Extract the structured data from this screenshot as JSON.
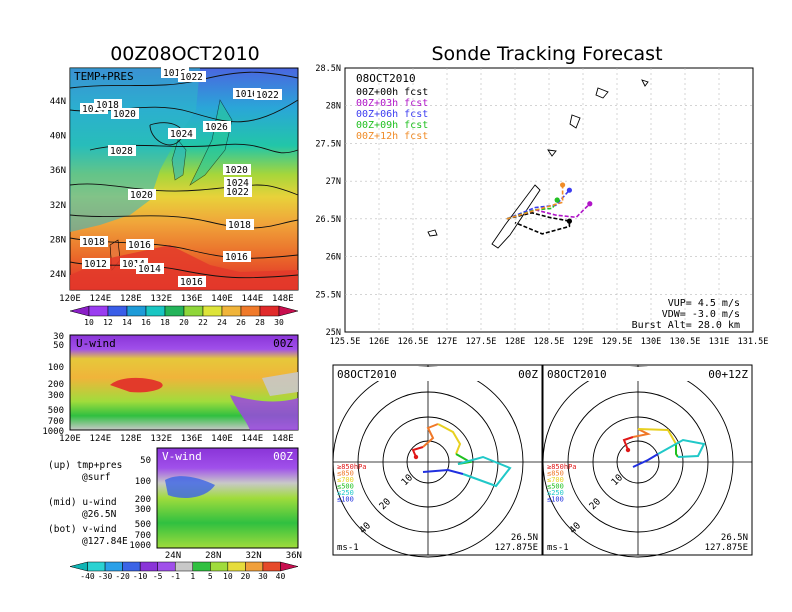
{
  "left_panel": {
    "title": "00Z08OCT2010",
    "map": {
      "label": "TEMP+PRES",
      "x_ticks": [
        "120E",
        "124E",
        "128E",
        "132E",
        "136E",
        "140E",
        "144E",
        "148E"
      ],
      "y_ticks": [
        "44N",
        "40N",
        "36N",
        "32N",
        "28N",
        "24N"
      ],
      "isobar_labels": [
        "1016",
        "1022",
        "1014",
        "1018",
        "1020",
        "1016",
        "1022",
        "1024",
        "1026",
        "1028",
        "1020",
        "1024",
        "1022",
        "1020",
        "1018",
        "1018",
        "1016",
        "1016",
        "1012",
        "1014",
        "1016",
        "1014"
      ],
      "colorbar_ticks": [
        "10",
        "12",
        "14",
        "16",
        "18",
        "20",
        "22",
        "24",
        "26",
        "28",
        "30"
      ],
      "colorbar_colors": [
        "#8a1fc6",
        "#9a3cf0",
        "#3a5ee8",
        "#1e9bd8",
        "#19c6c2",
        "#24b45a",
        "#8fd63a",
        "#dde43a",
        "#f0b43a",
        "#f07a2a",
        "#e02a2a",
        "#c80f4f"
      ]
    },
    "u_wind": {
      "label": "U-wind",
      "time": "00Z",
      "y_ticks": [
        "30",
        "50",
        "100",
        "200",
        "300",
        "500",
        "700",
        "1000"
      ],
      "x_ticks": [
        "120E",
        "124E",
        "128E",
        "132E",
        "136E",
        "140E",
        "144E",
        "148E"
      ]
    },
    "v_wind": {
      "label": "V-wind",
      "time": "00Z",
      "y_ticks": [
        "50",
        "100",
        "200",
        "300",
        "500",
        "700",
        "1000"
      ],
      "x_ticks": [
        "24N",
        "28N",
        "32N",
        "36N"
      ],
      "colorbar_ticks": [
        "-40",
        "-30",
        "-20",
        "-10",
        "-5",
        "-1",
        "1",
        "5",
        "10",
        "20",
        "30",
        "40"
      ],
      "colorbar_colors": [
        "#0fb4b4",
        "#2ad2d2",
        "#2aa0e8",
        "#3c64e6",
        "#8a34d8",
        "#a050ea",
        "#c8c8c8",
        "#30c040",
        "#a0dc3c",
        "#e6dc3c",
        "#f0a03c",
        "#e64a2a",
        "#c80f4f"
      ]
    },
    "legend": [
      [
        "(up) tmp+pres",
        "@surf"
      ],
      [
        "(mid) u-wind",
        "@26.5N"
      ],
      [
        "(bot) v-wind",
        "@127.84E"
      ]
    ]
  },
  "right_panel": {
    "title": "Sonde Tracking Forecast",
    "track_map": {
      "date": "08OCT2010",
      "legend": [
        {
          "text": "00Z+00h fcst",
          "color": "#000000"
        },
        {
          "text": "00Z+03h fcst",
          "color": "#b014c8"
        },
        {
          "text": "00Z+06h fcst",
          "color": "#3c3cf0"
        },
        {
          "text": "00Z+09h fcst",
          "color": "#22c022"
        },
        {
          "text": "00Z+12h fcst",
          "color": "#f08c28"
        }
      ],
      "x_ticks": [
        "125.5E",
        "126E",
        "126.5E",
        "127E",
        "127.5E",
        "128E",
        "128.5E",
        "129E",
        "129.5E",
        "130E",
        "130.5E",
        "131E",
        "131.5E"
      ],
      "y_ticks": [
        "28.5N",
        "28N",
        "27.5N",
        "27N",
        "26.5N",
        "26N",
        "25.5N",
        "25N"
      ],
      "xlim": [
        125.5,
        131.5
      ],
      "ylim": [
        25,
        28.5
      ],
      "params": [
        "VUP= 4.5 m/s",
        "VDW= -3.0 m/s",
        "Burst Alt= 28.0 km"
      ],
      "tracks": [
        {
          "name": "00Z+00h fcst",
          "color": "#000000",
          "points": [
            [
              127.88,
              26.5
            ],
            [
              128.25,
              26.58
            ],
            [
              128.5,
              26.52
            ],
            [
              128.8,
              26.47
            ],
            [
              128.8,
              26.4
            ],
            [
              128.4,
              26.3
            ],
            [
              128.0,
              26.45
            ]
          ]
        },
        {
          "name": "00Z+03h fcst",
          "color": "#b014c8",
          "points": [
            [
              127.88,
              26.5
            ],
            [
              128.3,
              26.62
            ],
            [
              128.6,
              26.55
            ],
            [
              128.9,
              26.52
            ],
            [
              129.1,
              26.7
            ]
          ]
        },
        {
          "name": "00Z+06h fcst",
          "color": "#3c3cf0",
          "points": [
            [
              127.88,
              26.5
            ],
            [
              128.3,
              26.65
            ],
            [
              128.6,
              26.68
            ],
            [
              128.8,
              26.88
            ]
          ]
        },
        {
          "name": "00Z+09h fcst",
          "color": "#22c022",
          "points": [
            [
              127.88,
              26.5
            ],
            [
              128.3,
              26.62
            ],
            [
              128.55,
              26.64
            ],
            [
              128.62,
              26.75
            ]
          ]
        },
        {
          "name": "00Z+12h fcst",
          "color": "#f08c28",
          "points": [
            [
              127.88,
              26.5
            ],
            [
              128.4,
              26.64
            ],
            [
              128.7,
              26.72
            ],
            [
              128.7,
              26.95
            ]
          ]
        }
      ]
    },
    "hodo_left": {
      "date": "08OCT2010",
      "time": "00Z",
      "loc1": "26.5N",
      "loc2": "127.875E",
      "units": "ms-1",
      "rings": [
        "10",
        "20",
        "40"
      ],
      "levels": [
        "≥850hPa",
        "≤850",
        "≤700",
        "≤500",
        "≤250",
        "≤100"
      ]
    },
    "hodo_right": {
      "date": "08OCT2010",
      "time": "00+12Z",
      "loc1": "26.5N",
      "loc2": "127.875E",
      "units": "ms-1",
      "rings": [
        "10",
        "20",
        "40"
      ],
      "levels": [
        "≥850hPa",
        "≤850",
        "≤700",
        "≤500",
        "≤250",
        "≤100"
      ]
    },
    "hodo_level_colors": [
      "#e01818",
      "#f07828",
      "#e8d020",
      "#20c020",
      "#20c8c8",
      "#2030e0"
    ]
  }
}
